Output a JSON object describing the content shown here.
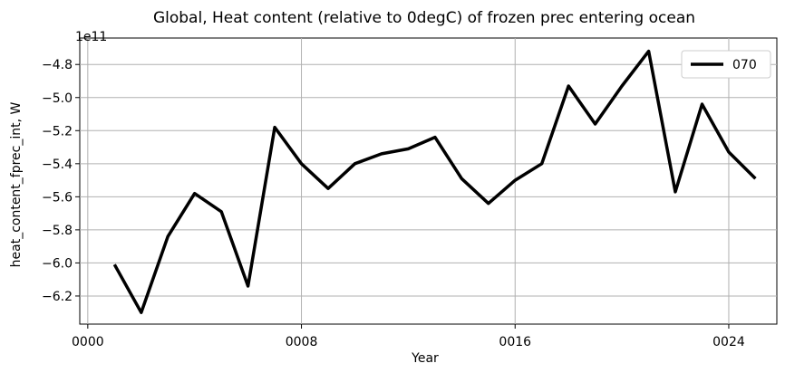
{
  "chart_data": {
    "type": "line",
    "title": "Global, Heat content (relative to 0degC) of frozen prec entering ocean",
    "xlabel": "Year",
    "ylabel": "heat_content_fprec_int, W",
    "y_offset_text": "1e11",
    "xlim": [
      -0.3,
      25.8
    ],
    "ylim": [
      -6.37,
      -4.64
    ],
    "x_ticks": [
      0,
      8,
      16,
      24
    ],
    "x_tick_labels": [
      "0000",
      "0008",
      "0016",
      "0024"
    ],
    "y_ticks": [
      -6.2,
      -6.0,
      -5.8,
      -5.6,
      -5.4,
      -5.2,
      -5.0,
      -4.8
    ],
    "y_tick_labels": [
      "−6.2",
      "−6.0",
      "−5.8",
      "−5.6",
      "−5.4",
      "−5.2",
      "−5.0",
      "−4.8"
    ],
    "grid": true,
    "legend_position": "top-right",
    "series": [
      {
        "name": "070",
        "color": "#000000",
        "x": [
          1,
          2,
          3,
          4,
          5,
          6,
          7,
          8,
          9,
          10,
          11,
          12,
          13,
          14,
          15,
          16,
          17,
          18,
          19,
          20,
          21,
          22,
          23,
          24,
          25
        ],
        "values": [
          -6.01,
          -6.3,
          -5.84,
          -5.58,
          -5.69,
          -6.14,
          -5.18,
          -5.4,
          -5.55,
          -5.4,
          -5.34,
          -5.31,
          -5.24,
          -5.49,
          -5.64,
          -5.5,
          -5.4,
          -4.93,
          -5.16,
          -4.93,
          -4.72,
          -5.57,
          -5.04,
          -5.33,
          -5.49
        ]
      }
    ]
  }
}
